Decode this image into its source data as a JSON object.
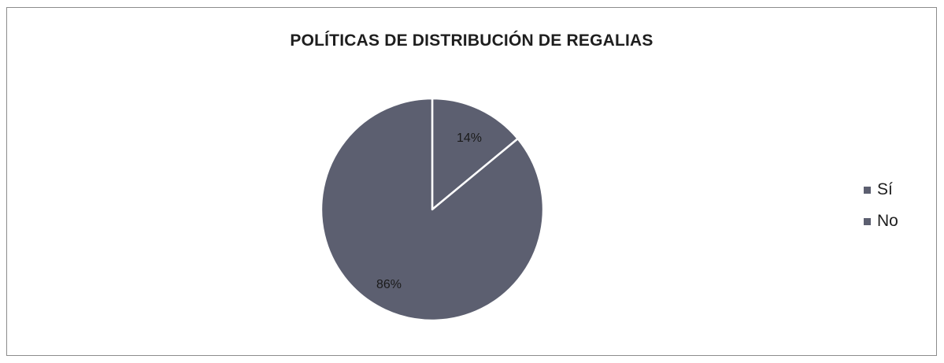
{
  "chart_data": {
    "type": "pie",
    "title": "POLÍTICAS DE DISTRIBUCIÓN DE REGALIAS",
    "categories": [
      "Sí",
      "No"
    ],
    "values": [
      14,
      86
    ],
    "data_labels": [
      "14%",
      "86%"
    ],
    "colors": [
      "#5c5f70",
      "#5c5f70"
    ],
    "slice_border_color": "#ffffff",
    "legend_position": "right"
  }
}
